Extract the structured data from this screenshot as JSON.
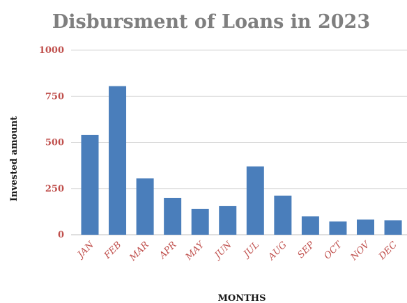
{
  "chart_data": {
    "type": "bar",
    "title": "Disbursment of Loans in 2023",
    "xlabel": "MONTHS",
    "ylabel": "Invested amount",
    "categories": [
      "JAN",
      "FEB",
      "MAR",
      "APR",
      "MAY",
      "JUN",
      "JUL",
      "AUG",
      "SEP",
      "OCT",
      "NOV",
      "DEC"
    ],
    "values": [
      540,
      805,
      305,
      200,
      140,
      155,
      370,
      212,
      100,
      72,
      82,
      78
    ],
    "ylim": [
      0,
      1000
    ],
    "yticks": [
      0,
      250,
      500,
      750,
      1000
    ],
    "grid": true,
    "legend": "none",
    "colors": {
      "bar": "#4a7ebb",
      "title": "#7f7f7f",
      "tick": "#c0504d",
      "grid": "#d9d9d9",
      "axis_label": "#1a1a1a"
    }
  }
}
